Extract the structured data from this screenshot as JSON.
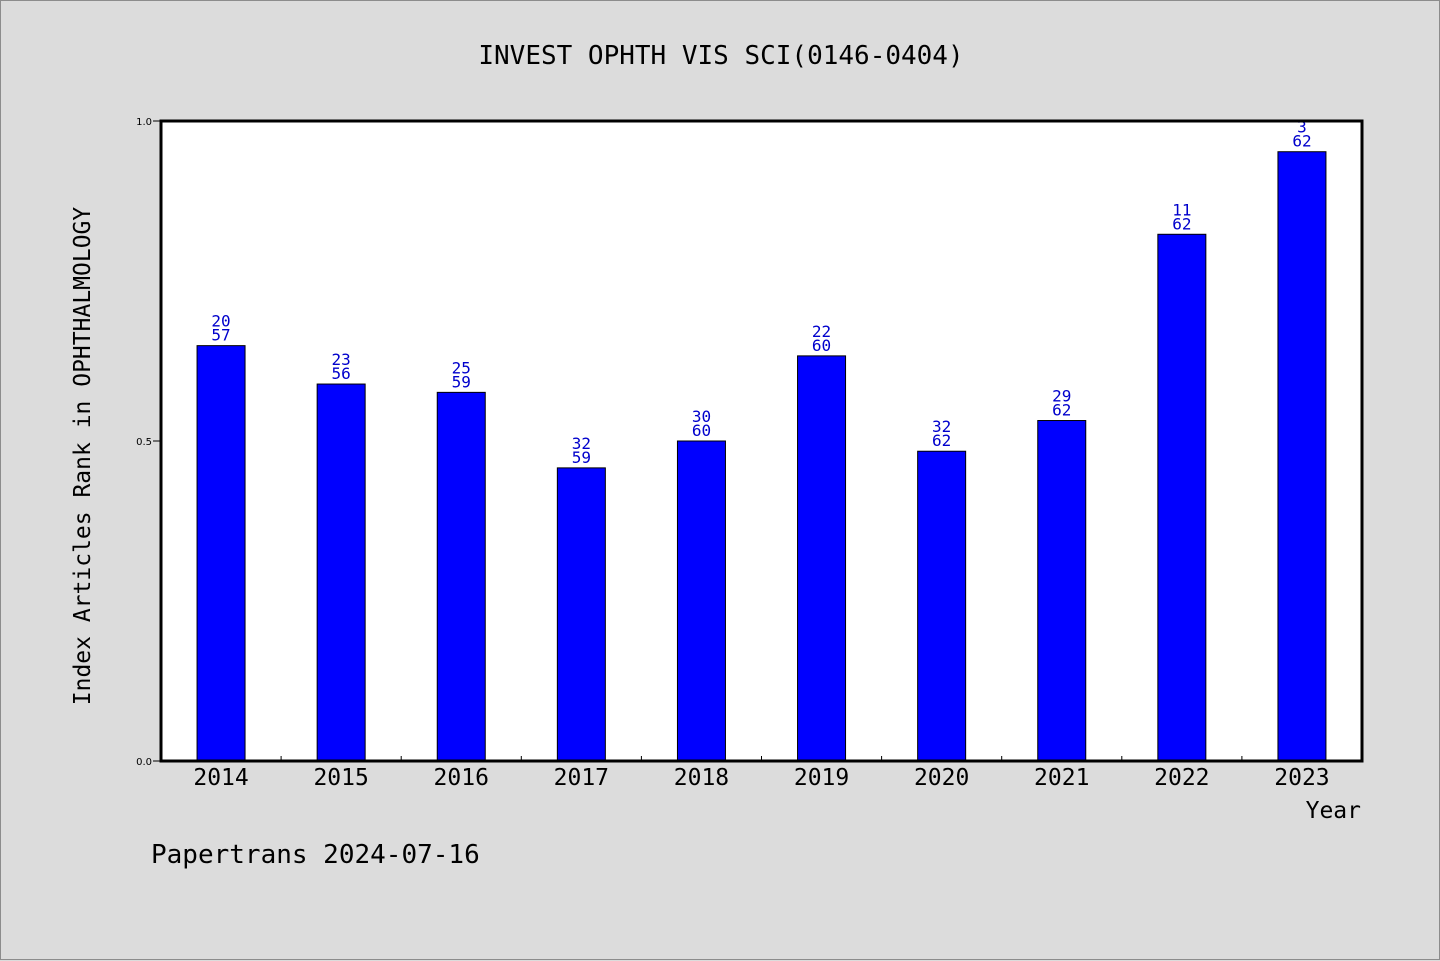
{
  "chart_data": {
    "type": "bar",
    "title": "INVEST OPHTH VIS SCI(0146-0404)",
    "xlabel": "Year",
    "ylabel": "Index Articles Rank in OPHTHALMOLOGY",
    "ylim": [
      0,
      1.0
    ],
    "yticks": [
      "0.0",
      "0.5",
      "1.0"
    ],
    "categories": [
      "2014",
      "2015",
      "2016",
      "2017",
      "2018",
      "2019",
      "2020",
      "2021",
      "2022",
      "2023"
    ],
    "values": [
      0.649,
      0.589,
      0.576,
      0.458,
      0.5,
      0.633,
      0.484,
      0.532,
      0.823,
      0.952
    ],
    "ranks": [
      "20",
      "23",
      "25",
      "32",
      "30",
      "22",
      "32",
      "29",
      "11",
      "3"
    ],
    "totals": [
      "57",
      "56",
      "59",
      "59",
      "60",
      "60",
      "62",
      "62",
      "62",
      "62"
    ],
    "bar_color": "#0000ff",
    "label_color": "#0000cc",
    "grid": false,
    "legend": "none"
  },
  "footer": {
    "text": "Papertrans 2024-07-16"
  }
}
